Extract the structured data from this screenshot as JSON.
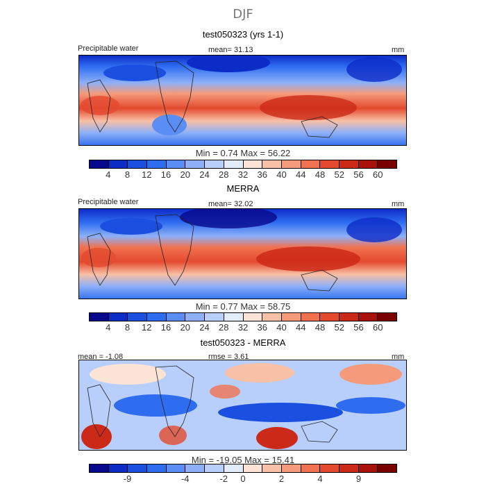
{
  "title": "DJF",
  "panels": [
    {
      "title": "test050323 (yrs 1-1)",
      "header_left": "Precipitable water",
      "header_mid": "mean=  31.13",
      "header_right": "mm",
      "min_max": "Min =   0.74 Max =  56.22"
    },
    {
      "title": "MERRA",
      "header_left": "Precipitable water",
      "header_mid": "mean=  32.02",
      "header_right": "mm",
      "min_max": "Min =   0.77 Max =  58.75"
    },
    {
      "title": "test050323 - MERRA",
      "header_left": "mean =  -1.08",
      "header_mid": "rmse =   3.61",
      "header_right": "mm",
      "min_max": "Min = -19.05 Max =  15.41"
    }
  ],
  "colorbar_main": {
    "colors": [
      "#08088c",
      "#0c2cc8",
      "#1a4fe0",
      "#2f6df0",
      "#5b8ef5",
      "#8db0f8",
      "#b8cffb",
      "#e2ecfb",
      "#fbe3d6",
      "#f8c0a6",
      "#f59a7a",
      "#f07250",
      "#e44a2e",
      "#cc2a18",
      "#a81208",
      "#7a0000"
    ],
    "ticks": [
      "4",
      "8",
      "12",
      "16",
      "20",
      "24",
      "28",
      "32",
      "36",
      "40",
      "44",
      "48",
      "52",
      "56",
      "60"
    ]
  },
  "colorbar_diff": {
    "colors": [
      "#08088c",
      "#0c2cc8",
      "#1a4fe0",
      "#2f6df0",
      "#5b8ef5",
      "#8db0f8",
      "#b8cffb",
      "#e2ecfb",
      "#fbe3d6",
      "#f8c0a6",
      "#f59a7a",
      "#f07250",
      "#e44a2e",
      "#cc2a18",
      "#a81208",
      "#7a0000"
    ],
    "ticks": [
      "-9",
      "-4",
      "-2",
      "0",
      "2",
      "4",
      "9"
    ]
  }
}
